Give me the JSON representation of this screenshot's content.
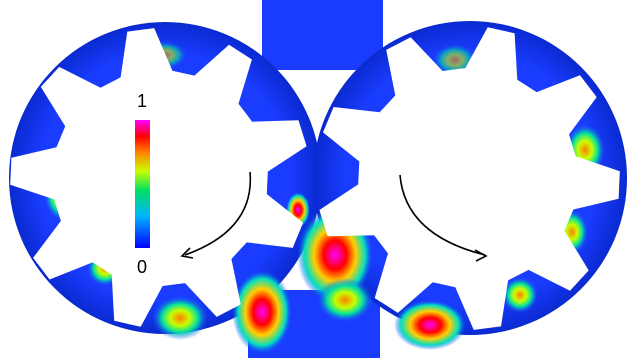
{
  "colorbar": {
    "top": "1",
    "bottom": "0"
  }
}
